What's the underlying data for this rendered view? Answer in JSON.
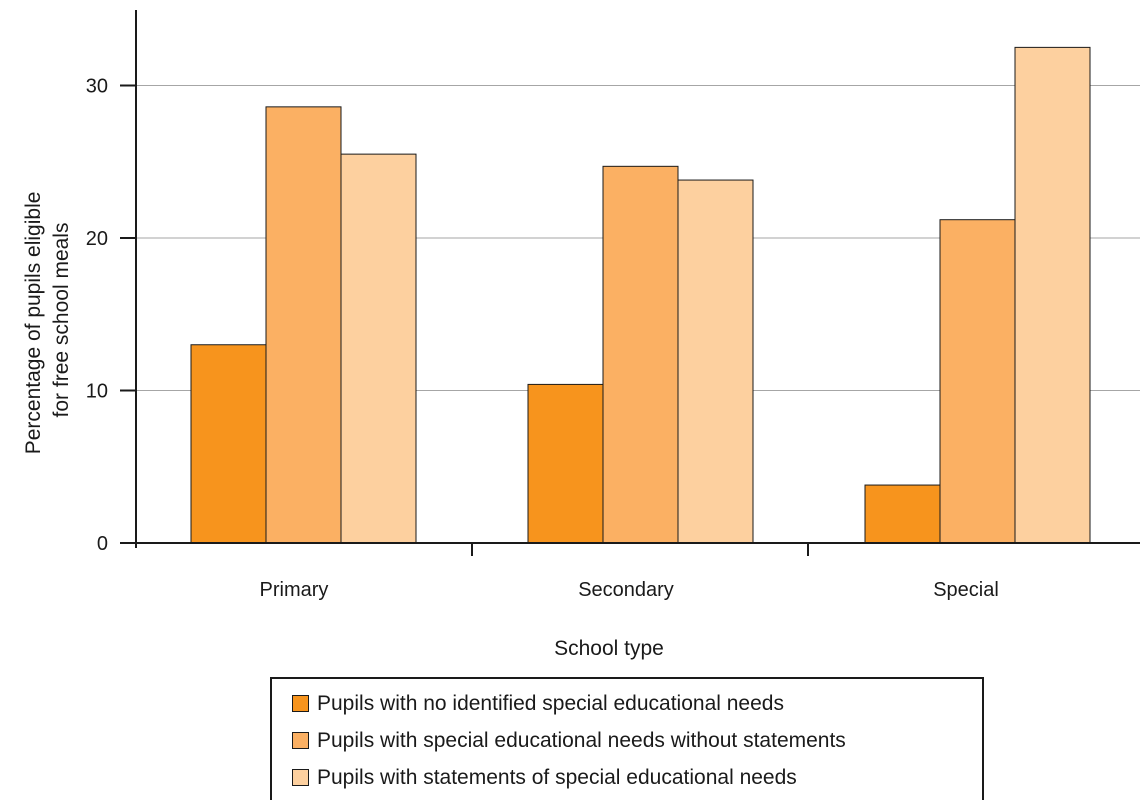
{
  "chart_data": {
    "type": "bar",
    "title": "",
    "xlabel": "School type",
    "ylabel": [
      "Percentage of pupils eligible",
      "for free school meals"
    ],
    "categories": [
      "Primary",
      "Secondary",
      "Special"
    ],
    "yticks": [
      "0",
      "10",
      "20",
      "30"
    ],
    "ylim": [
      0,
      34
    ],
    "grid": true,
    "legend_position": "bottom",
    "series": [
      {
        "name": "Pupils with no identified special educational needs",
        "color": "#f7941d",
        "values": [
          13.0,
          10.4,
          3.8
        ]
      },
      {
        "name": "Pupils with special educational needs without statements",
        "color": "#fbb063",
        "values": [
          28.6,
          24.7,
          21.2
        ]
      },
      {
        "name": "Pupils with statements of special educational needs",
        "color": "#fdd09f",
        "values": [
          25.5,
          23.8,
          32.5
        ]
      }
    ]
  }
}
